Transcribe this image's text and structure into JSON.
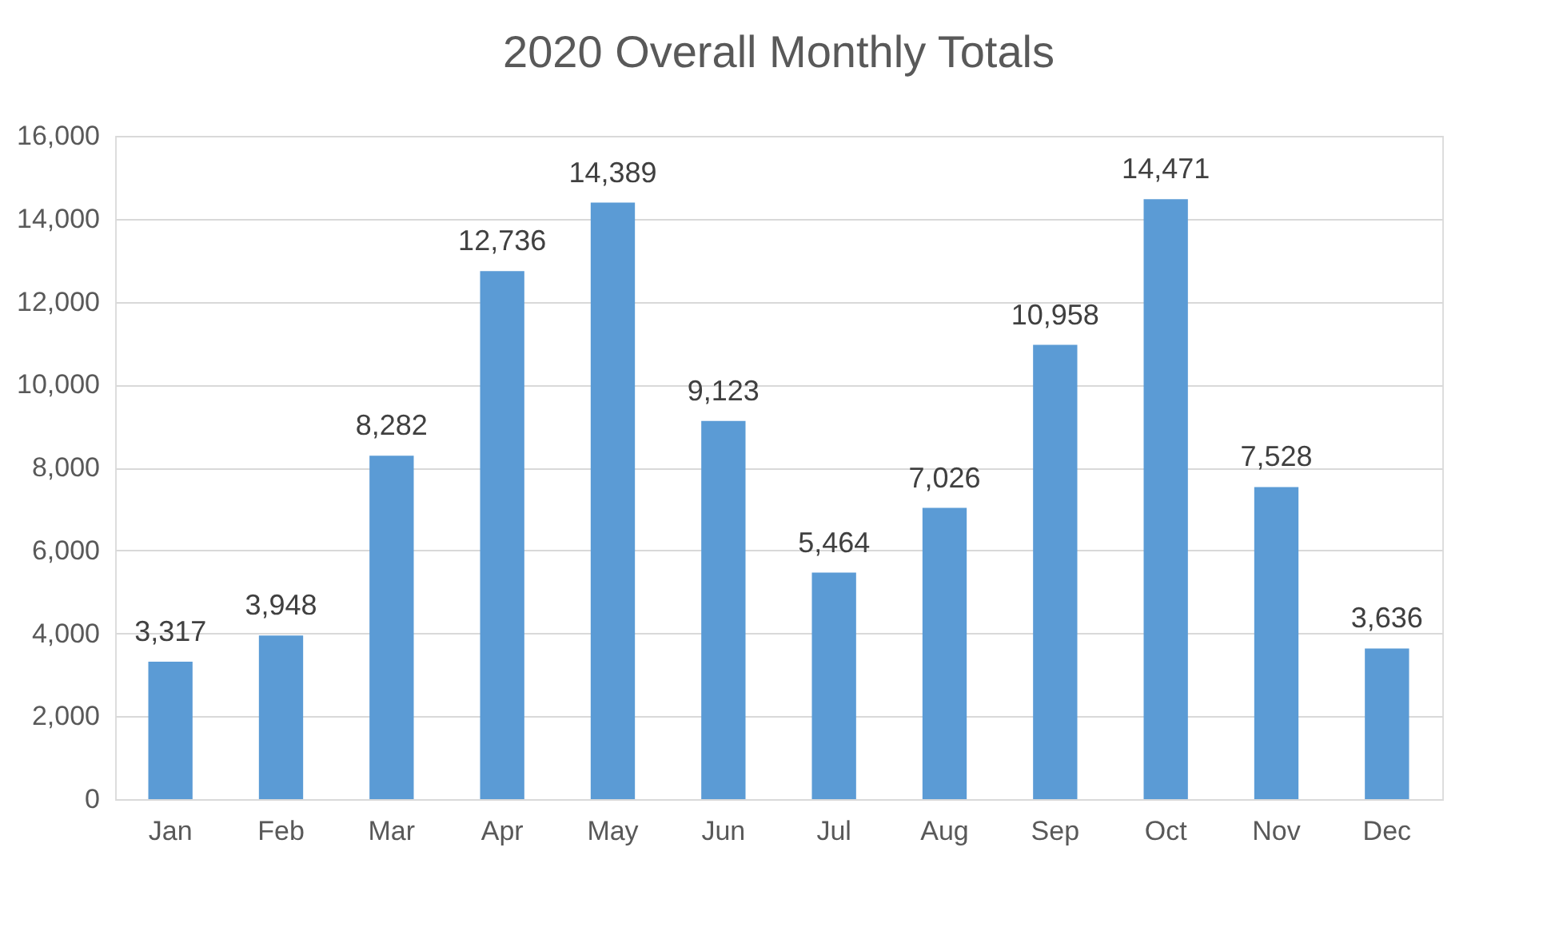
{
  "chart_data": {
    "type": "bar",
    "title": "2020 Overall Monthly Totals",
    "categories": [
      "Jan",
      "Feb",
      "Mar",
      "Apr",
      "May",
      "Jun",
      "Jul",
      "Aug",
      "Sep",
      "Oct",
      "Nov",
      "Dec"
    ],
    "values": [
      3317,
      3948,
      8282,
      12736,
      14389,
      9123,
      5464,
      7026,
      10958,
      14471,
      7528,
      3636
    ],
    "value_labels": [
      "3,317",
      "3,948",
      "8,282",
      "12,736",
      "14,389",
      "9,123",
      "5,464",
      "7,026",
      "10,958",
      "14,471",
      "7,528",
      "3,636"
    ],
    "color": "#5b9bd5",
    "ylim": [
      0,
      16000
    ],
    "yticks": [
      {
        "value": 0,
        "label": "0"
      },
      {
        "value": 2000,
        "label": "2,000"
      },
      {
        "value": 4000,
        "label": "4,000"
      },
      {
        "value": 6000,
        "label": "6,000"
      },
      {
        "value": 8000,
        "label": "8,000"
      },
      {
        "value": 10000,
        "label": "10,000"
      },
      {
        "value": 12000,
        "label": "12,000"
      },
      {
        "value": 14000,
        "label": "14,000"
      },
      {
        "value": 16000,
        "label": "16,000"
      }
    ],
    "grid": "y"
  }
}
